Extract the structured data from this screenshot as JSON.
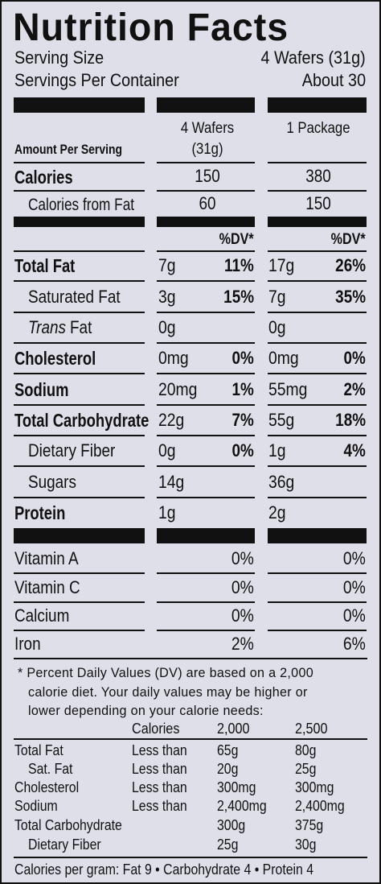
{
  "title": "Nutrition Facts",
  "serving_size": {
    "label": "Serving Size",
    "value": "4 Wafers (31g)"
  },
  "servings_per_container": {
    "label": "Servings Per Container",
    "value": "About 30"
  },
  "amount_per_serving": "Amount Per Serving",
  "columns": [
    {
      "heading": "4 Wafers",
      "subheading": "(31g)"
    },
    {
      "heading": "1 Package"
    }
  ],
  "calories": {
    "label": "Calories",
    "values": [
      "150",
      "380"
    ]
  },
  "calories_from_fat": {
    "label": "Calories from Fat",
    "values": [
      "60",
      "150"
    ]
  },
  "dv_header": [
    "%DV*",
    "%DV*"
  ],
  "nutrients": [
    {
      "label": "Total Fat",
      "amounts": [
        "7g",
        "17g"
      ],
      "dv": [
        "11%",
        "26%"
      ]
    },
    {
      "label": "Saturated Fat",
      "amounts": [
        "3g",
        "7g"
      ],
      "dv": [
        "15%",
        "35%"
      ]
    },
    {
      "label_italic": "Trans",
      "label": "Fat",
      "amounts": [
        "0g",
        "0g"
      ]
    },
    {
      "label": "Cholesterol",
      "amounts": [
        "0mg",
        "0mg"
      ],
      "dv": [
        "0%",
        "0%"
      ]
    },
    {
      "label": "Sodium",
      "amounts": [
        "20mg",
        "55mg"
      ],
      "dv": [
        "1%",
        "2%"
      ]
    },
    {
      "label": "Total Carbohydrate",
      "amounts": [
        "22g",
        "55g"
      ],
      "dv": [
        "7%",
        "18%"
      ]
    },
    {
      "label": "Dietary Fiber",
      "amounts": [
        "0g",
        "1g"
      ],
      "dv": [
        "0%",
        "4%"
      ]
    },
    {
      "label": "Sugars",
      "amounts": [
        "14g",
        "36g"
      ]
    },
    {
      "label": "Protein",
      "amounts": [
        "1g",
        "2g"
      ]
    }
  ],
  "vitamins": [
    {
      "label": "Vitamin A",
      "dv": [
        "0%",
        "0%"
      ]
    },
    {
      "label": "Vitamin C",
      "dv": [
        "0%",
        "0%"
      ]
    },
    {
      "label": "Calcium",
      "dv": [
        "0%",
        "0%"
      ]
    },
    {
      "label": "Iron",
      "dv": [
        "2%",
        "6%"
      ]
    }
  ],
  "footnote": [
    "* Percent Daily Values (DV) are based on a 2,000",
    "calorie diet. Your daily values may be higher or",
    "lower depending on your calorie needs:"
  ],
  "dv_table": {
    "header": [
      "Calories",
      "2,000",
      "2,500"
    ],
    "rows": [
      [
        "Total Fat",
        "Less than",
        "65g",
        "80g"
      ],
      [
        "Sat. Fat",
        "Less than",
        "20g",
        "25g"
      ],
      [
        "Cholesterol",
        "Less than",
        "300mg",
        "300mg"
      ],
      [
        "Sodium",
        "Less than",
        "2,400mg",
        "2,400mg"
      ],
      [
        "Total Carbohydrate",
        "",
        "300g",
        "375g"
      ],
      [
        "Dietary Fiber",
        "",
        "25g",
        "30g"
      ]
    ]
  },
  "calories_per_gram": "Calories per gram: Fat 9 • Carbohydrate 4 • Protein 4"
}
